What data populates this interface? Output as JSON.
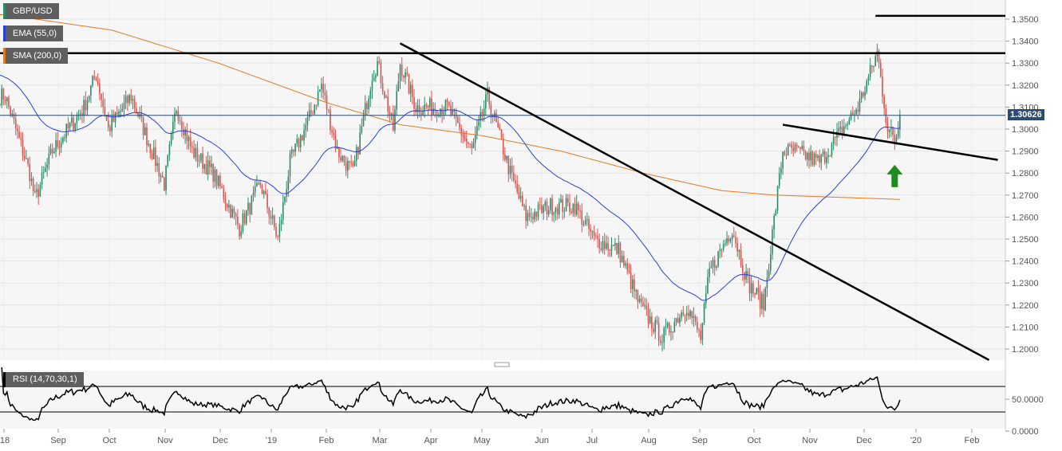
{
  "chart_data": [
    {
      "type": "candlestick",
      "symbol": "GBP/USD",
      "indicators": [
        {
          "label": "EMA (55,0)",
          "color": "#2a3fd6"
        },
        {
          "label": "SMA (200,0)",
          "color": "#e07b24"
        }
      ],
      "last_price": "1.30626",
      "ylim": [
        1.195,
        1.355
      ],
      "y_ticks": [
        "1.3500",
        "1.3400",
        "1.3300",
        "1.3200",
        "1.3100",
        "1.3000",
        "1.2900",
        "1.2800",
        "1.2700",
        "1.2600",
        "1.2500",
        "1.2400",
        "1.2300",
        "1.2200",
        "1.2100",
        "1.2000"
      ],
      "x_ticks": [
        "'18",
        "Sep",
        "Oct",
        "Nov",
        "Dec",
        "'19",
        "Feb",
        "Mar",
        "Apr",
        "May",
        "Jun",
        "Jul",
        "Aug",
        "Sep",
        "Oct",
        "Nov",
        "Dec",
        "'20",
        "Feb"
      ],
      "close_path": [
        [
          "2018-08-01",
          1.315
        ],
        [
          "2018-08-15",
          1.28
        ],
        [
          "2018-08-18",
          1.268
        ],
        [
          "2018-08-28",
          1.29
        ],
        [
          "2018-09-15",
          1.31
        ],
        [
          "2018-09-22",
          1.325
        ],
        [
          "2018-09-29",
          1.3
        ],
        [
          "2018-10-12",
          1.315
        ],
        [
          "2018-10-31",
          1.275
        ],
        [
          "2018-11-07",
          1.31
        ],
        [
          "2018-11-16",
          1.29
        ],
        [
          "2018-11-28",
          1.28
        ],
        [
          "2018-12-13",
          1.255
        ],
        [
          "2018-12-25",
          1.275
        ],
        [
          "2019-01-04",
          1.25
        ],
        [
          "2019-01-11",
          1.285
        ],
        [
          "2019-01-22",
          1.305
        ],
        [
          "2019-01-29",
          1.32
        ],
        [
          "2019-02-07",
          1.29
        ],
        [
          "2019-02-16",
          1.28
        ],
        [
          "2019-02-27",
          1.325
        ],
        [
          "2019-03-02",
          1.33
        ],
        [
          "2019-03-11",
          1.3
        ],
        [
          "2019-03-15",
          1.33
        ],
        [
          "2019-03-24",
          1.31
        ],
        [
          "2019-04-11",
          1.31
        ],
        [
          "2019-04-25",
          1.29
        ],
        [
          "2019-05-04",
          1.315
        ],
        [
          "2019-05-17",
          1.28
        ],
        [
          "2019-05-26",
          1.26
        ],
        [
          "2019-06-09",
          1.265
        ],
        [
          "2019-06-23",
          1.265
        ],
        [
          "2019-07-04",
          1.25
        ],
        [
          "2019-07-18",
          1.245
        ],
        [
          "2019-07-30",
          1.22
        ],
        [
          "2019-08-12",
          1.205
        ],
        [
          "2019-08-26",
          1.22
        ],
        [
          "2019-09-03",
          1.205
        ],
        [
          "2019-09-08",
          1.235
        ],
        [
          "2019-09-21",
          1.255
        ],
        [
          "2019-09-30",
          1.23
        ],
        [
          "2019-10-09",
          1.22
        ],
        [
          "2019-10-16",
          1.265
        ],
        [
          "2019-10-20",
          1.29
        ],
        [
          "2019-10-27",
          1.29
        ],
        [
          "2019-11-10",
          1.285
        ],
        [
          "2019-11-19",
          1.295
        ],
        [
          "2019-12-02",
          1.31
        ],
        [
          "2019-12-11",
          1.33
        ],
        [
          "2019-12-13",
          1.335
        ],
        [
          "2019-12-19",
          1.3
        ],
        [
          "2019-12-23",
          1.295
        ],
        [
          "2019-12-27",
          1.306
        ]
      ],
      "sma_path": [
        [
          "2018-08-01",
          1.352
        ],
        [
          "2018-10-01",
          1.345
        ],
        [
          "2018-12-01",
          1.33
        ],
        [
          "2019-02-01",
          1.312
        ],
        [
          "2019-03-15",
          1.302
        ],
        [
          "2019-05-01",
          1.297
        ],
        [
          "2019-06-15",
          1.29
        ],
        [
          "2019-08-01",
          1.28
        ],
        [
          "2019-09-15",
          1.272
        ],
        [
          "2019-10-15",
          1.27
        ],
        [
          "2019-12-27",
          1.268
        ]
      ],
      "annotations": [
        {
          "type": "horizontal-line",
          "price": 1.3345
        },
        {
          "type": "horizontal-line",
          "price": 1.3515,
          "from": "2019-12-12"
        },
        {
          "type": "trendline",
          "from": [
            "2019-03-15",
            1.339
          ],
          "to": [
            "2020-02-15",
            1.195
          ]
        },
        {
          "type": "trendline",
          "from": [
            "2019-10-20",
            1.302
          ],
          "to": [
            "2020-02-20",
            1.286
          ]
        },
        {
          "type": "arrow-up",
          "color": "#1e8c1e",
          "at": [
            "2019-12-23",
            1.283
          ]
        }
      ]
    },
    {
      "type": "line",
      "label": "RSI (14,70,30,1)",
      "levels": [
        70,
        30
      ],
      "y_ticks": [
        "50.0000",
        "0.0000"
      ],
      "ylim": [
        0,
        100
      ]
    }
  ]
}
